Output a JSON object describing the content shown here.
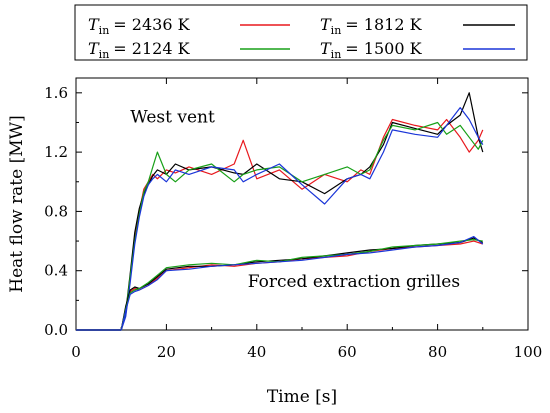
{
  "chart_data": {
    "type": "line",
    "xlabel": "Time [s]",
    "ylabel": "Heat flow rate [MW]",
    "xlim": [
      0,
      100
    ],
    "ylim": [
      0,
      1.7
    ],
    "x_ticks": [
      "0",
      "20",
      "40",
      "60",
      "80",
      "100"
    ],
    "y_ticks": [
      "0.0",
      "0.4",
      "0.8",
      "1.2",
      "1.6"
    ],
    "legend": {
      "position": "top",
      "entries": [
        {
          "label_var": "T",
          "label_sub": "in",
          "label_rest": "= 2436 K",
          "color": "#e8191e"
        },
        {
          "label_var": "T",
          "label_sub": "in",
          "label_rest": "= 1812 K",
          "color": "#000000"
        },
        {
          "label_var": "T",
          "label_sub": "in",
          "label_rest": "= 2124 K",
          "color": "#18a018"
        },
        {
          "label_var": "T",
          "label_sub": "in",
          "label_rest": "= 1500 K",
          "color": "#1a35d8"
        }
      ]
    },
    "annotations": [
      {
        "text": "West vent",
        "x": 12,
        "y": 1.4
      },
      {
        "text": "Forced extraction grilles",
        "x": 38,
        "y": 0.29
      }
    ],
    "series": [
      {
        "name": "Tin = 2436 K",
        "group": "West vent",
        "color": "#e8191e",
        "x": [
          0,
          10,
          11,
          12,
          13,
          14,
          15,
          16,
          17,
          18,
          20,
          22,
          25,
          30,
          35,
          37,
          40,
          45,
          50,
          55,
          60,
          63,
          65,
          68,
          70,
          75,
          80,
          82,
          85,
          87,
          89,
          90
        ],
        "y": [
          0,
          0,
          0.1,
          0.35,
          0.62,
          0.8,
          0.95,
          1.0,
          1.05,
          1.02,
          1.08,
          1.06,
          1.1,
          1.05,
          1.12,
          1.28,
          1.02,
          1.08,
          0.95,
          1.05,
          1.0,
          1.08,
          1.05,
          1.3,
          1.42,
          1.38,
          1.35,
          1.42,
          1.3,
          1.2,
          1.28,
          1.35
        ]
      },
      {
        "name": "Tin = 1812 K",
        "group": "West vent",
        "color": "#000000",
        "x": [
          0,
          10,
          11,
          12,
          13,
          14,
          15,
          16,
          17,
          18,
          20,
          22,
          25,
          30,
          35,
          37,
          40,
          45,
          50,
          55,
          60,
          63,
          65,
          68,
          70,
          75,
          80,
          82,
          85,
          87,
          89,
          90
        ],
        "y": [
          0,
          0,
          0.12,
          0.38,
          0.66,
          0.82,
          0.92,
          0.98,
          1.04,
          1.08,
          1.05,
          1.12,
          1.08,
          1.1,
          1.06,
          1.05,
          1.12,
          1.02,
          1.0,
          0.92,
          1.02,
          1.05,
          1.1,
          1.25,
          1.4,
          1.36,
          1.32,
          1.38,
          1.45,
          1.6,
          1.3,
          1.2
        ]
      },
      {
        "name": "Tin = 2124 K",
        "group": "West vent",
        "color": "#18a018",
        "x": [
          0,
          10,
          11,
          12,
          13,
          14,
          15,
          16,
          17,
          18,
          20,
          22,
          25,
          30,
          35,
          37,
          40,
          45,
          50,
          55,
          60,
          63,
          65,
          68,
          70,
          75,
          80,
          82,
          85,
          87,
          89,
          90
        ],
        "y": [
          0,
          0,
          0.11,
          0.36,
          0.6,
          0.78,
          0.93,
          1.0,
          1.1,
          1.2,
          1.05,
          1.0,
          1.08,
          1.12,
          1.0,
          1.05,
          1.08,
          1.1,
          1.0,
          1.05,
          1.1,
          1.05,
          1.08,
          1.28,
          1.38,
          1.35,
          1.4,
          1.32,
          1.38,
          1.3,
          1.22,
          1.28
        ]
      },
      {
        "name": "Tin = 1500 K",
        "group": "West vent",
        "color": "#1a35d8",
        "x": [
          0,
          10,
          11,
          12,
          13,
          14,
          15,
          16,
          17,
          18,
          20,
          22,
          25,
          30,
          35,
          37,
          40,
          45,
          50,
          55,
          60,
          63,
          65,
          68,
          70,
          75,
          80,
          82,
          85,
          87,
          89,
          90
        ],
        "y": [
          0,
          0,
          0.09,
          0.32,
          0.58,
          0.76,
          0.9,
          0.98,
          1.02,
          1.05,
          1.0,
          1.08,
          1.05,
          1.1,
          1.08,
          1.0,
          1.05,
          1.12,
          0.98,
          0.85,
          1.02,
          1.05,
          1.02,
          1.2,
          1.35,
          1.32,
          1.3,
          1.38,
          1.5,
          1.42,
          1.3,
          1.25
        ]
      },
      {
        "name": "Tin = 2436 K",
        "group": "Forced extraction grilles",
        "color": "#e8191e",
        "x": [
          0,
          10,
          11,
          12,
          13,
          14,
          16,
          18,
          20,
          25,
          30,
          35,
          40,
          45,
          50,
          55,
          60,
          65,
          70,
          75,
          80,
          85,
          88,
          90
        ],
        "y": [
          0,
          0,
          0.15,
          0.26,
          0.28,
          0.27,
          0.3,
          0.35,
          0.4,
          0.42,
          0.44,
          0.43,
          0.45,
          0.46,
          0.48,
          0.49,
          0.5,
          0.53,
          0.55,
          0.56,
          0.57,
          0.58,
          0.6,
          0.58
        ]
      },
      {
        "name": "Tin = 1812 K",
        "group": "Forced extraction grilles",
        "color": "#000000",
        "x": [
          0,
          10,
          11,
          12,
          13,
          14,
          16,
          18,
          20,
          25,
          30,
          35,
          40,
          45,
          50,
          55,
          60,
          65,
          70,
          75,
          80,
          85,
          88,
          90
        ],
        "y": [
          0,
          0,
          0.16,
          0.27,
          0.29,
          0.28,
          0.31,
          0.36,
          0.41,
          0.43,
          0.43,
          0.44,
          0.46,
          0.47,
          0.48,
          0.5,
          0.52,
          0.54,
          0.55,
          0.57,
          0.58,
          0.59,
          0.62,
          0.59
        ]
      },
      {
        "name": "Tin = 2124 K",
        "group": "Forced extraction grilles",
        "color": "#18a018",
        "x": [
          0,
          10,
          11,
          12,
          13,
          14,
          16,
          18,
          20,
          25,
          30,
          35,
          40,
          45,
          50,
          55,
          60,
          65,
          70,
          75,
          80,
          85,
          88,
          90
        ],
        "y": [
          0,
          0,
          0.14,
          0.25,
          0.27,
          0.28,
          0.32,
          0.37,
          0.42,
          0.44,
          0.45,
          0.44,
          0.47,
          0.46,
          0.49,
          0.5,
          0.51,
          0.53,
          0.56,
          0.57,
          0.58,
          0.6,
          0.61,
          0.6
        ]
      },
      {
        "name": "Tin = 1500 K",
        "group": "Forced extraction grilles",
        "color": "#1a35d8",
        "x": [
          0,
          10,
          11,
          12,
          13,
          14,
          16,
          18,
          20,
          25,
          30,
          35,
          40,
          45,
          50,
          55,
          60,
          65,
          70,
          75,
          80,
          85,
          88,
          90
        ],
        "y": [
          0,
          0,
          0.13,
          0.24,
          0.26,
          0.27,
          0.3,
          0.34,
          0.4,
          0.41,
          0.43,
          0.44,
          0.45,
          0.46,
          0.47,
          0.49,
          0.51,
          0.52,
          0.54,
          0.56,
          0.57,
          0.59,
          0.63,
          0.58
        ]
      }
    ]
  }
}
